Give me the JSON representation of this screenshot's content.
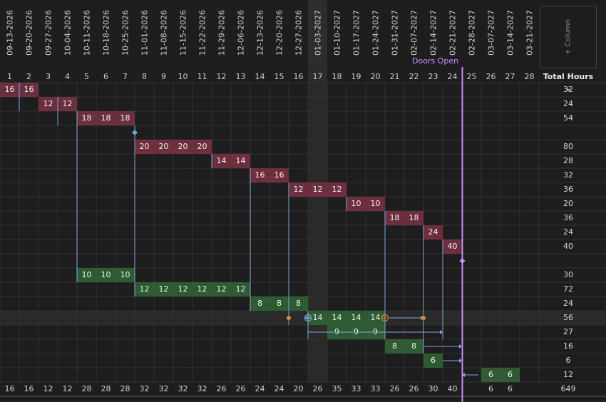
{
  "dates": [
    "09-13-2026",
    "09-20-2026",
    "09-27-2026",
    "10-04-2026",
    "10-11-2026",
    "10-18-2026",
    "10-25-2026",
    "11-01-2026",
    "11-08-2026",
    "11-15-2026",
    "11-22-2026",
    "11-29-2026",
    "12-06-2026",
    "12-13-2026",
    "12-20-2026",
    "12-27-2026",
    "01-03-2027",
    "01-10-2027",
    "01-17-2027",
    "01-24-2027",
    "01-31-2027",
    "02-07-2027",
    "02-14-2027",
    "02-21-2027",
    "02-28-2027",
    "03-07-2027",
    "03-14-2027",
    "03-21-2027"
  ],
  "weeks": [
    "1",
    "2",
    "3",
    "4",
    "5",
    "6",
    "7",
    "8",
    "9",
    "10",
    "11",
    "12",
    "13",
    "14",
    "15",
    "16",
    "17",
    "18",
    "19",
    "20",
    "21",
    "22",
    "23",
    "24",
    "25",
    "26",
    "27",
    "28"
  ],
  "highlight_week": 17,
  "add_column_label": "+ Column",
  "total_header": "Total Hours",
  "milestone_label": "Doors Open",
  "rows": [
    {
      "color": "red",
      "start": 1,
      "cells": [
        "16",
        "16"
      ],
      "total": "32"
    },
    {
      "color": "red",
      "start": 3,
      "cells": [
        "12",
        "12"
      ],
      "total": "24"
    },
    {
      "color": "red",
      "start": 5,
      "cells": [
        "18",
        "18",
        "18"
      ],
      "total": "54"
    },
    {
      "color": "none",
      "start": 0,
      "cells": [],
      "total": ""
    },
    {
      "color": "red",
      "start": 8,
      "cells": [
        "20",
        "20",
        "20",
        "20"
      ],
      "total": "80"
    },
    {
      "color": "red",
      "start": 12,
      "cells": [
        "14",
        "14"
      ],
      "total": "28"
    },
    {
      "color": "red",
      "start": 14,
      "cells": [
        "16",
        "16"
      ],
      "total": "32"
    },
    {
      "color": "red",
      "start": 16,
      "cells": [
        "12",
        "12",
        "12"
      ],
      "total": "36"
    },
    {
      "color": "red",
      "start": 19,
      "cells": [
        "10",
        "10"
      ],
      "total": "20"
    },
    {
      "color": "red",
      "start": 21,
      "cells": [
        "18",
        "18"
      ],
      "total": "36"
    },
    {
      "color": "red",
      "start": 23,
      "cells": [
        "24"
      ],
      "total": "24"
    },
    {
      "color": "red",
      "start": 24,
      "cells": [
        "40"
      ],
      "total": "40"
    },
    {
      "color": "none",
      "start": 0,
      "cells": [],
      "total": ""
    },
    {
      "color": "green",
      "start": 5,
      "cells": [
        "10",
        "10",
        "10"
      ],
      "total": "30"
    },
    {
      "color": "green",
      "start": 8,
      "cells": [
        "12",
        "12",
        "12",
        "12",
        "12",
        "12"
      ],
      "total": "72"
    },
    {
      "color": "green",
      "start": 14,
      "cells": [
        "8",
        "8",
        "8"
      ],
      "total": "24"
    },
    {
      "color": "green",
      "start": 17,
      "cells": [
        "14",
        "14",
        "14",
        "14"
      ],
      "total": "56"
    },
    {
      "color": "green",
      "start": 18,
      "cells": [
        "9",
        "9",
        "9"
      ],
      "total": "27"
    },
    {
      "color": "green",
      "start": 21,
      "cells": [
        "8",
        "8"
      ],
      "total": "16"
    },
    {
      "color": "green",
      "start": 23,
      "cells": [
        "6"
      ],
      "total": "6"
    },
    {
      "color": "green",
      "start": 26,
      "cells": [
        "6",
        "6"
      ],
      "total": "12"
    }
  ],
  "column_sums": [
    "16",
    "16",
    "12",
    "12",
    "28",
    "28",
    "28",
    "32",
    "32",
    "32",
    "32",
    "26",
    "26",
    "24",
    "24",
    "20",
    "26",
    "35",
    "33",
    "33",
    "26",
    "26",
    "30",
    "40",
    "",
    "6",
    "6",
    ""
  ],
  "grand_total": "649",
  "colors": {
    "red": "#6b2f3d",
    "green": "#2e5a34",
    "milestone": "#c98bff",
    "link": "#7fa7d8"
  }
}
